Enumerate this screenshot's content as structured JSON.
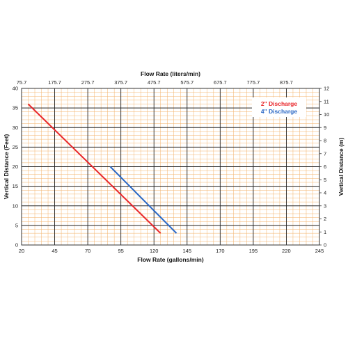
{
  "chart_data": {
    "type": "line",
    "xlabel": "Flow Rate (gallons/min)",
    "x2label": "Flow Rate (liters/min)",
    "ylabel": "Vertical Distance (Feet)",
    "y2label": "Vertical Distance (m)",
    "xlim": [
      20,
      245
    ],
    "ylim": [
      0,
      40
    ],
    "y2lim": [
      0,
      12
    ],
    "x_ticks": [
      "20",
      "45",
      "70",
      "95",
      "120",
      "145",
      "170",
      "195",
      "220",
      "245"
    ],
    "x2_ticks": [
      "75.7",
      "175.7",
      "275.7",
      "375.7",
      "475.7",
      "575.7",
      "675.7",
      "775.7",
      "875.7"
    ],
    "y_ticks": [
      "0",
      "5",
      "10",
      "15",
      "20",
      "25",
      "30",
      "35",
      "40"
    ],
    "y2_ticks": [
      "0",
      "1",
      "2",
      "3",
      "4",
      "5",
      "6",
      "7",
      "8",
      "9",
      "10",
      "11",
      "12"
    ],
    "grid": true,
    "legend_position": "top-right",
    "series": [
      {
        "name": "2\" Discharge",
        "color": "#e8262a",
        "x": [
          25,
          125
        ],
        "y": [
          36,
          3
        ]
      },
      {
        "name": "4\" Discharge",
        "color": "#2b68c5",
        "x": [
          87,
          137
        ],
        "y": [
          20,
          3
        ]
      }
    ]
  }
}
